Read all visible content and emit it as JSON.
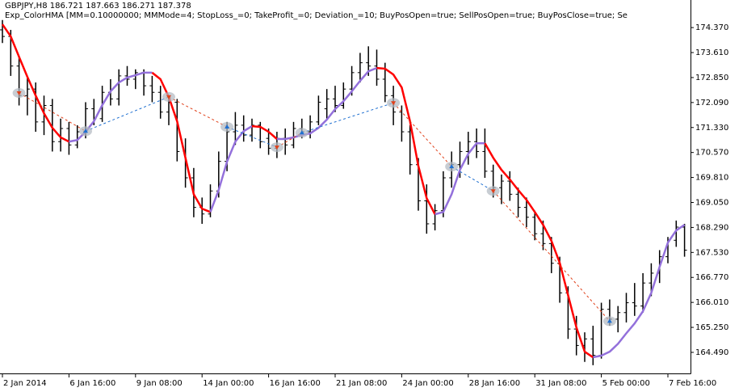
{
  "chart_data": {
    "type": "ohlc",
    "title": "GBPJPY,H8  186.721 187.663 186.271 187.378",
    "subtitle": "Exp_ColorHMA [MM=0.10000000; MMMode=4; StopLoss_=0; TakeProfit_=0; Deviation_=10; BuyPosOpen=true; SellPosOpen=true; BuyPosClose=true; Se",
    "categories": [
      "2 Jan 2014",
      null,
      null,
      null,
      null,
      null,
      null,
      null,
      "6 Jan 16:00",
      null,
      null,
      null,
      null,
      null,
      null,
      null,
      "9 Jan 08:00",
      null,
      null,
      null,
      null,
      null,
      null,
      null,
      "14 Jan 00:00",
      null,
      null,
      null,
      null,
      null,
      null,
      null,
      "16 Jan 16:00",
      null,
      null,
      null,
      null,
      null,
      null,
      null,
      "21 Jan 08:00",
      null,
      null,
      null,
      null,
      null,
      null,
      null,
      "24 Jan 00:00",
      null,
      null,
      null,
      null,
      null,
      null,
      null,
      "28 Jan 16:00",
      null,
      null,
      null,
      null,
      null,
      null,
      null,
      "31 Jan 08:00",
      null,
      null,
      null,
      null,
      null,
      null,
      null,
      "5 Feb 00:00",
      null,
      null,
      null,
      null,
      null,
      null,
      null,
      "7 Feb 16:00",
      null,
      null
    ],
    "open": [
      174.3,
      174.1,
      173.2,
      172.3,
      172.5,
      171.5,
      172.0,
      170.9,
      171.3,
      170.8,
      171.2,
      171.9,
      171.6,
      172.4,
      172.2,
      172.9,
      172.8,
      173.0,
      172.6,
      172.4,
      171.8,
      172.1,
      170.6,
      169.8,
      168.9,
      168.7,
      169.4,
      170.3,
      171.2,
      171.4,
      171.1,
      171.4,
      171.0,
      170.7,
      171.0,
      170.8,
      171.3,
      171.2,
      171.5,
      171.9,
      172.2,
      172.0,
      172.5,
      173.0,
      173.3,
      173.2,
      172.8,
      172.3,
      171.8,
      171.2,
      170.2,
      169.1,
      168.4,
      168.8,
      169.8,
      170.2,
      170.6,
      170.9,
      170.6,
      170.0,
      169.5,
      169.7,
      169.3,
      168.9,
      168.6,
      168.1,
      167.8,
      167.2,
      166.3,
      165.2,
      164.7,
      164.9,
      164.4,
      165.8,
      165.5,
      165.7,
      166.0,
      165.9,
      166.6,
      166.9,
      167.4,
      167.9,
      168.3
    ],
    "high": [
      174.6,
      174.3,
      173.5,
      172.9,
      172.7,
      172.3,
      172.2,
      171.6,
      171.5,
      171.4,
      172.1,
      172.2,
      172.6,
      172.8,
      173.1,
      173.2,
      173.1,
      173.1,
      172.9,
      172.6,
      172.3,
      172.2,
      171.0,
      170.1,
      169.2,
      169.6,
      170.6,
      171.5,
      171.8,
      171.7,
      171.6,
      171.5,
      171.3,
      171.2,
      171.3,
      171.5,
      171.6,
      171.7,
      172.3,
      172.5,
      172.6,
      172.7,
      173.2,
      173.6,
      173.8,
      173.7,
      173.3,
      172.6,
      172.0,
      171.4,
      170.4,
      169.6,
      169.0,
      170.0,
      170.6,
      170.9,
      171.2,
      171.3,
      171.3,
      170.2,
      169.9,
      170.0,
      169.5,
      169.2,
      168.8,
      168.5,
      168.0,
      167.4,
      166.5,
      165.6,
      165.1,
      165.3,
      166.0,
      166.1,
      165.9,
      166.3,
      166.6,
      166.9,
      167.2,
      167.6,
      168.0,
      168.5,
      168.4
    ],
    "low": [
      173.9,
      172.9,
      172.0,
      171.7,
      171.2,
      171.1,
      170.6,
      170.6,
      170.5,
      170.7,
      171.0,
      171.4,
      171.5,
      172.0,
      172.0,
      172.6,
      172.5,
      172.3,
      172.1,
      171.6,
      171.4,
      170.3,
      169.5,
      168.6,
      168.4,
      168.6,
      169.2,
      170.0,
      170.8,
      170.9,
      170.9,
      170.7,
      170.5,
      170.4,
      170.5,
      170.7,
      171.0,
      171.0,
      171.4,
      171.6,
      171.8,
      171.9,
      172.3,
      172.7,
      172.9,
      172.6,
      172.1,
      171.4,
      170.9,
      169.9,
      168.8,
      168.1,
      168.2,
      168.6,
      169.5,
      169.8,
      170.2,
      170.4,
      169.8,
      169.2,
      169.0,
      169.1,
      168.6,
      168.3,
      167.9,
      167.6,
      166.9,
      166.0,
      164.9,
      164.4,
      164.2,
      164.1,
      164.3,
      165.3,
      165.1,
      165.4,
      165.6,
      165.7,
      166.2,
      166.6,
      167.2,
      167.7,
      167.4
    ],
    "close": [
      174.1,
      173.2,
      172.3,
      172.5,
      171.5,
      172.0,
      170.9,
      171.3,
      170.8,
      171.2,
      171.9,
      171.6,
      172.4,
      172.2,
      172.9,
      172.8,
      173.0,
      172.6,
      172.4,
      171.8,
      172.1,
      170.6,
      169.8,
      168.9,
      168.7,
      169.4,
      170.3,
      171.2,
      171.4,
      171.1,
      171.4,
      170.9,
      170.7,
      171.0,
      170.8,
      171.3,
      171.2,
      171.5,
      172.1,
      172.2,
      172.0,
      172.5,
      173.0,
      173.3,
      173.2,
      172.8,
      172.3,
      171.8,
      171.2,
      170.2,
      169.1,
      168.4,
      168.8,
      169.8,
      170.2,
      170.6,
      170.9,
      170.6,
      170.0,
      169.5,
      169.7,
      169.3,
      168.9,
      168.6,
      168.1,
      167.8,
      167.2,
      166.3,
      165.2,
      164.7,
      164.9,
      164.4,
      165.8,
      165.5,
      165.7,
      166.0,
      165.9,
      166.6,
      166.9,
      167.4,
      167.9,
      168.3,
      167.6
    ],
    "bar_color": "#000000",
    "hma": {
      "values": [
        174.47,
        174.1,
        173.48,
        172.87,
        172.3,
        171.76,
        171.32,
        171.03,
        170.9,
        170.95,
        171.2,
        171.52,
        172.01,
        172.43,
        172.7,
        172.85,
        172.92,
        173.0,
        173.0,
        172.8,
        172.26,
        171.52,
        170.41,
        169.3,
        168.86,
        168.76,
        169.43,
        170.29,
        170.9,
        171.22,
        171.37,
        171.35,
        171.2,
        170.98,
        170.98,
        171.03,
        171.1,
        171.15,
        171.32,
        171.57,
        171.89,
        172.13,
        172.43,
        172.75,
        173.04,
        173.14,
        173.12,
        172.94,
        172.55,
        171.52,
        170.16,
        169.18,
        168.69,
        168.76,
        169.3,
        170.04,
        170.53,
        170.85,
        170.85,
        170.41,
        170.04,
        169.75,
        169.43,
        169.13,
        168.76,
        168.37,
        167.88,
        167.21,
        166.23,
        165.25,
        164.51,
        164.34,
        164.39,
        164.51,
        164.75,
        165.07,
        165.37,
        165.74,
        166.3,
        167.09,
        167.83,
        168.2,
        168.37
      ],
      "up_color": "#9370db",
      "down_color": "#ff0000"
    },
    "signals": [
      {
        "bar": 2,
        "price": 172.38,
        "side": "sell"
      },
      {
        "bar": 10,
        "price": 171.22,
        "side": "buy"
      },
      {
        "bar": 20,
        "price": 172.26,
        "side": "sell"
      },
      {
        "bar": 27,
        "price": 171.35,
        "side": "buy"
      },
      {
        "bar": 33,
        "price": 170.73,
        "side": "sell"
      },
      {
        "bar": 36,
        "price": 171.17,
        "side": "buy"
      },
      {
        "bar": 47,
        "price": 172.08,
        "side": "sell"
      },
      {
        "bar": 54,
        "price": 170.14,
        "side": "buy"
      },
      {
        "bar": 59,
        "price": 169.4,
        "side": "sell"
      },
      {
        "bar": 73,
        "price": 165.44,
        "side": "buy"
      }
    ],
    "buy_color": "#1e6fd0",
    "sell_color": "#e0401a",
    "ylim": [
      163.85,
      174.84
    ],
    "yticks": [
      {
        "value": 164.49,
        "label": "164.490"
      },
      {
        "value": 165.25,
        "label": "165.250"
      },
      {
        "value": 166.01,
        "label": "166.010"
      },
      {
        "value": 166.77,
        "label": "166.770"
      },
      {
        "value": 167.53,
        "label": "167.530"
      },
      {
        "value": 168.29,
        "label": "168.290"
      },
      {
        "value": 169.05,
        "label": "169.050"
      },
      {
        "value": 169.81,
        "label": "169.810"
      },
      {
        "value": 170.57,
        "label": "170.570"
      },
      {
        "value": 171.33,
        "label": "171.330"
      },
      {
        "value": 172.09,
        "label": "172.090"
      },
      {
        "value": 172.85,
        "label": "172.850"
      },
      {
        "value": 173.61,
        "label": "173.610"
      },
      {
        "value": 174.37,
        "label": "174.370"
      }
    ]
  }
}
